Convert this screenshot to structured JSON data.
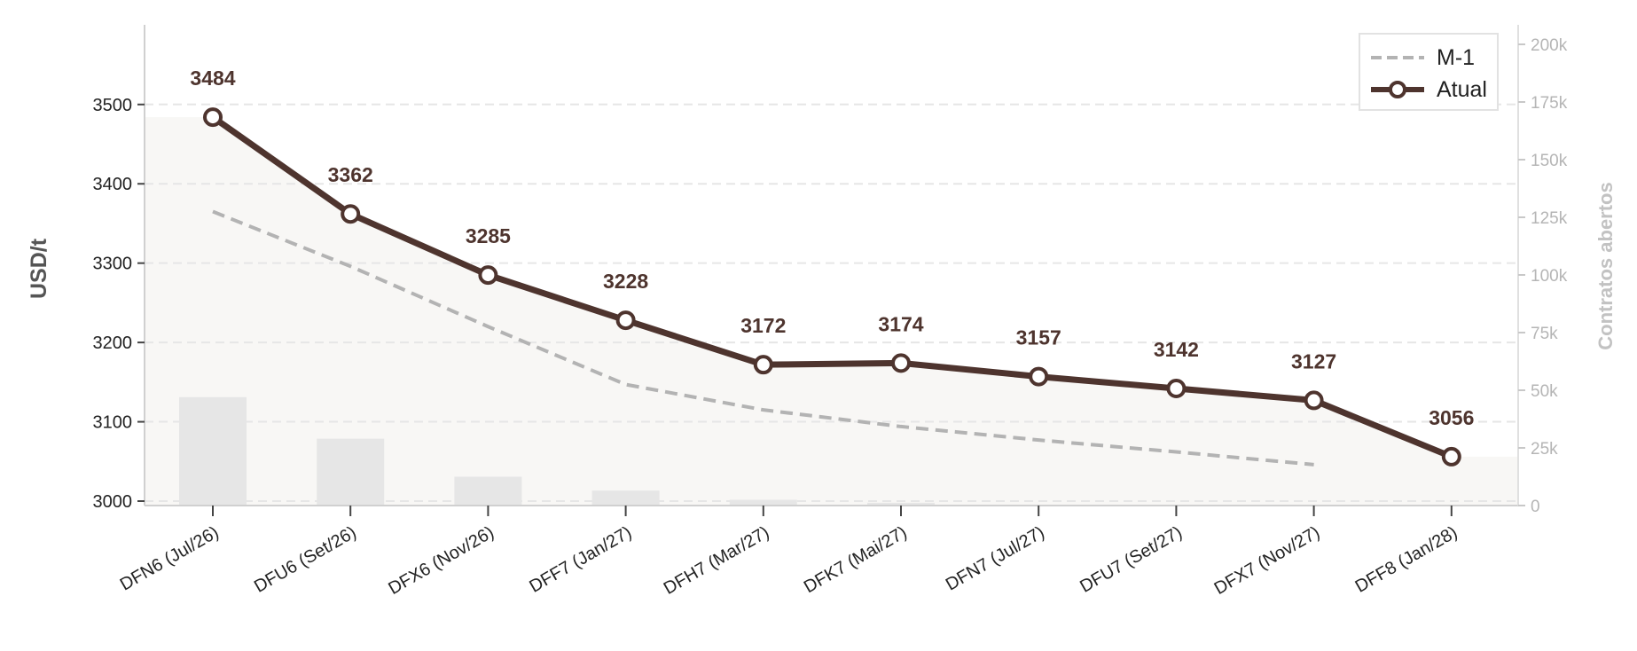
{
  "chart_data": {
    "type": "line",
    "categories": [
      "DFN6 (Jul/26)",
      "DFU6 (Set/26)",
      "DFX6 (Nov/26)",
      "DFF7 (Jan/27)",
      "DFH7 (Mar/27)",
      "DFK7 (Mai/27)",
      "DFN7 (Jul/27)",
      "DFU7 (Set/27)",
      "DFX7 (Nov/27)",
      "DFF8 (Jan/28)"
    ],
    "series": [
      {
        "name": "M-1",
        "style": "dashed",
        "color": "#b3b3b3",
        "values": [
          3365,
          3296,
          3220,
          3147,
          3115,
          3094,
          3077,
          3062,
          3046,
          null
        ]
      },
      {
        "name": "Atual",
        "style": "solid-markers",
        "color": "#4e342e",
        "values": [
          3484,
          3362,
          3285,
          3228,
          3172,
          3174,
          3157,
          3142,
          3127,
          3056
        ],
        "labels": [
          "3484",
          "3362",
          "3285",
          "3228",
          "3172",
          "3174",
          "3157",
          "3142",
          "3127",
          "3056"
        ]
      }
    ],
    "bars": {
      "name": "Contratos abertos",
      "color": "#e6e6e6",
      "values": [
        47000,
        29000,
        12500,
        6500,
        2500,
        1200,
        300,
        200,
        100,
        50
      ]
    },
    "ylabel": "USD/t",
    "y2label": "Contratos abertos",
    "ylim": [
      2995,
      3600
    ],
    "y2lim": [
      0,
      210000
    ],
    "yticks": [
      "3000",
      "3100",
      "3200",
      "3300",
      "3400",
      "3500"
    ],
    "y2ticks": [
      "0",
      "25k",
      "50k",
      "75k",
      "100k",
      "125k",
      "150k",
      "175k",
      "200k"
    ],
    "grid": true,
    "legend_position": "top-right",
    "colors": {
      "primary": "#4e342e",
      "secondary": "#b3b3b3",
      "bars": "#e6e6e6",
      "area": "#f8f7f5"
    }
  }
}
